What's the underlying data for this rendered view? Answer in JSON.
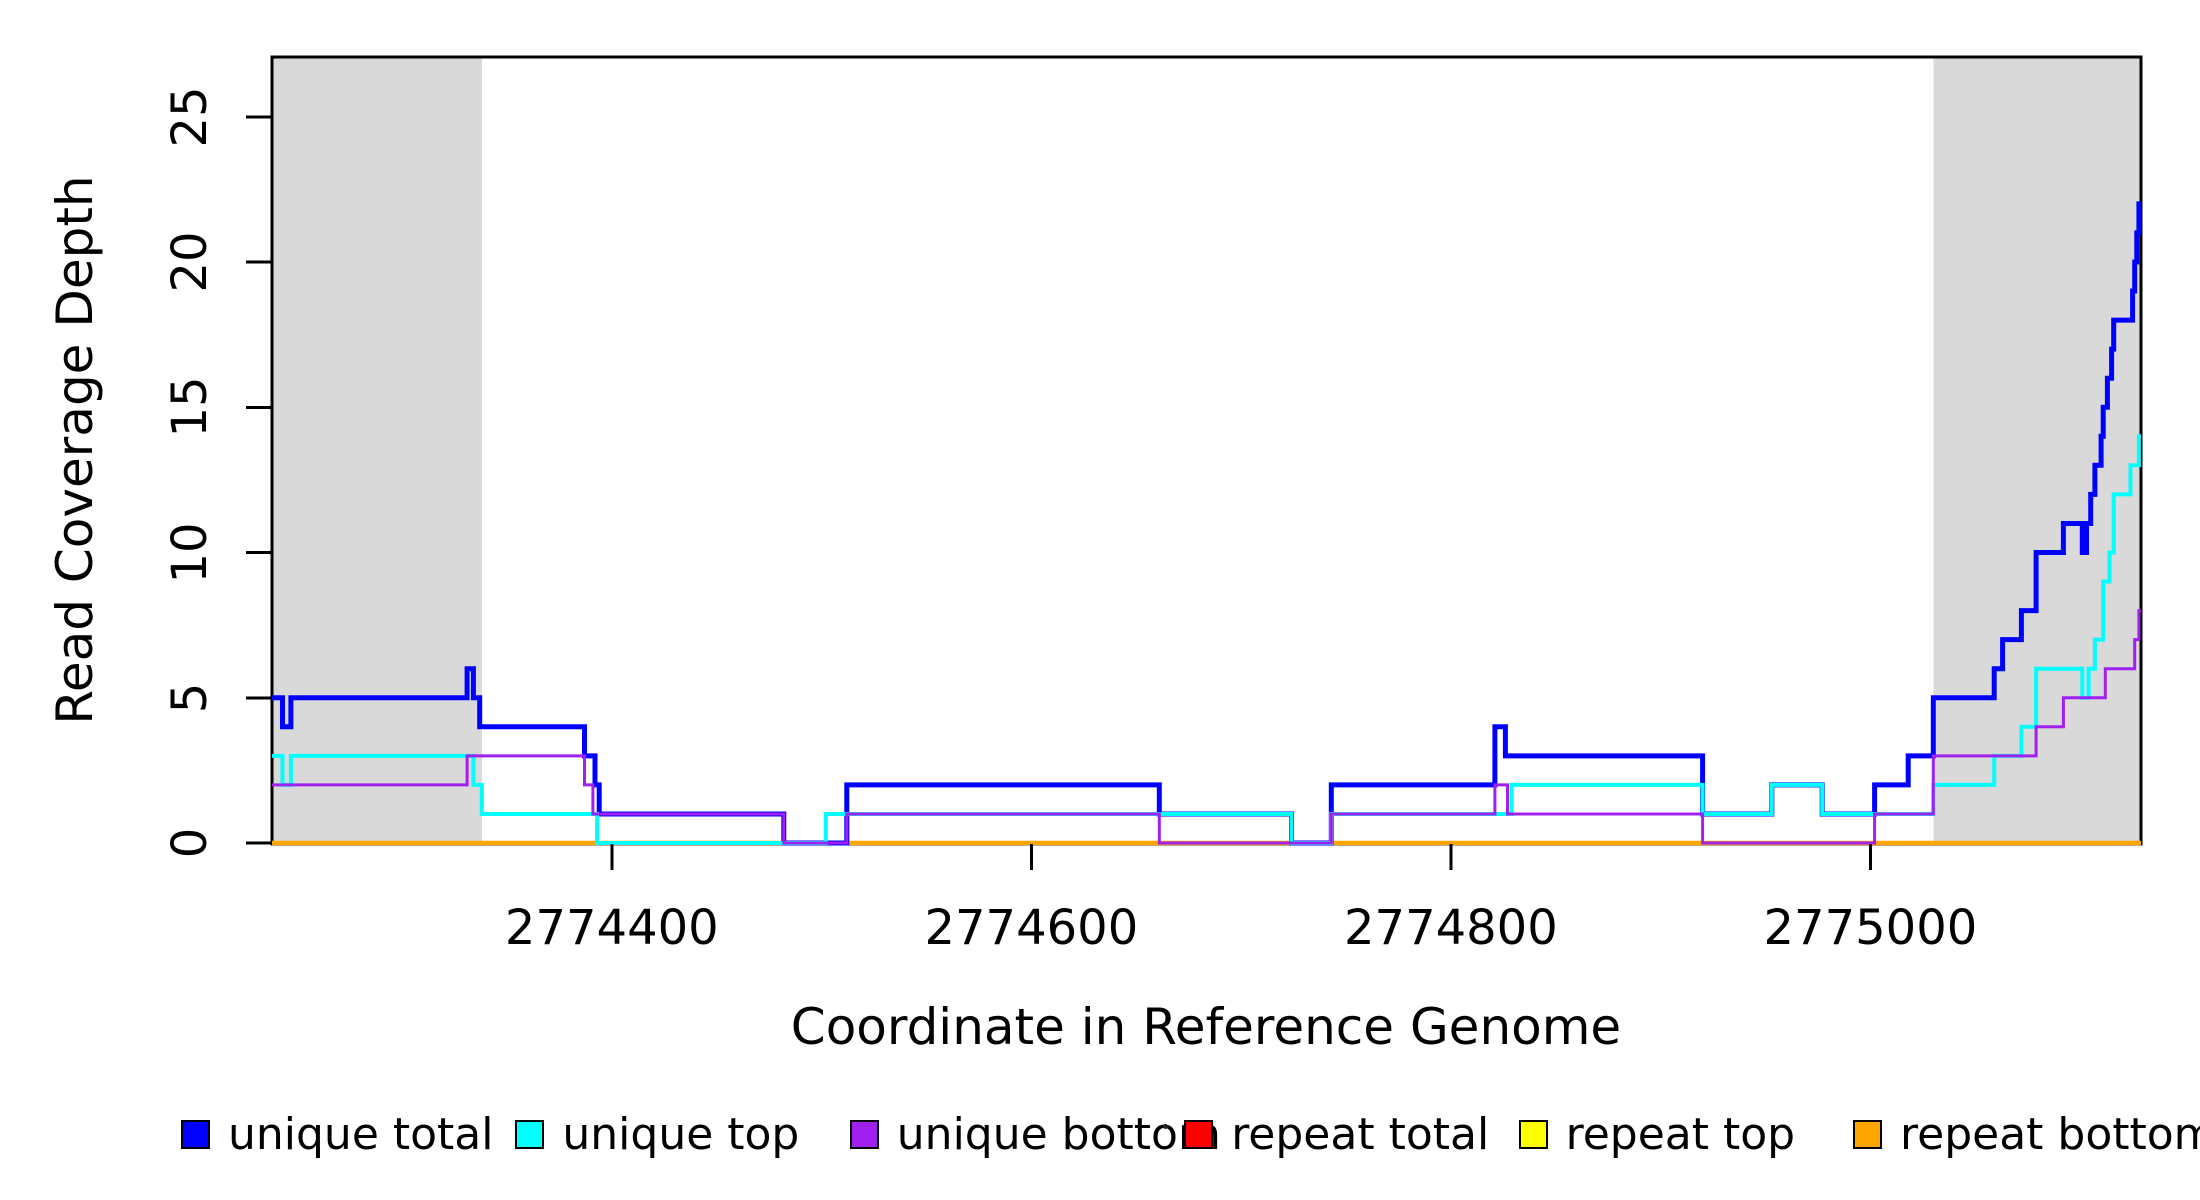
{
  "chart_data": {
    "type": "line",
    "subtype": "step",
    "title": "",
    "xlabel": "Coordinate in Reference Genome",
    "ylabel": "Read Coverage Depth",
    "xlim": [
      2774238,
      2775129
    ],
    "ylim": [
      0,
      27
    ],
    "grid": false,
    "legend_position": "bottom",
    "shade_color": "#d9d9d9",
    "axis_color": "#000000",
    "shaded_regions": [
      {
        "x0": 2774238,
        "x1": 2774338
      },
      {
        "x0": 2775030,
        "x1": 2775129
      }
    ],
    "x_ticks": [
      {
        "value": 2774400,
        "label": "2774400"
      },
      {
        "value": 2774600,
        "label": "2774600"
      },
      {
        "value": 2774800,
        "label": "2774800"
      },
      {
        "value": 2775000,
        "label": "2775000"
      }
    ],
    "y_ticks": [
      {
        "value": 0,
        "label": "0"
      },
      {
        "value": 5,
        "label": "5"
      },
      {
        "value": 10,
        "label": "10"
      },
      {
        "value": 15,
        "label": "15"
      },
      {
        "value": 20,
        "label": "20"
      },
      {
        "value": 25,
        "label": "25"
      }
    ],
    "series": [
      {
        "name": "repeat total",
        "color": "#ff0000",
        "width": 3,
        "steps": [
          [
            2774238,
            0
          ],
          [
            2775129,
            0
          ]
        ]
      },
      {
        "name": "repeat top",
        "color": "#ffff00",
        "width": 3,
        "steps": [
          [
            2774238,
            0
          ],
          [
            2775129,
            0
          ]
        ]
      },
      {
        "name": "repeat bottom",
        "color": "#ffa500",
        "width": 4.5,
        "steps": [
          [
            2774238,
            0
          ],
          [
            2775129,
            0
          ]
        ]
      },
      {
        "name": "unique total",
        "color": "#0000ff",
        "width": 5,
        "steps": [
          [
            2774238,
            5
          ],
          [
            2774243,
            4
          ],
          [
            2774247,
            5
          ],
          [
            2774331,
            6
          ],
          [
            2774334,
            5
          ],
          [
            2774337,
            4
          ],
          [
            2774387,
            3
          ],
          [
            2774392,
            2
          ],
          [
            2774394,
            1
          ],
          [
            2774482,
            0
          ],
          [
            2774512,
            2
          ],
          [
            2774661,
            1
          ],
          [
            2774724,
            0
          ],
          [
            2774743,
            2
          ],
          [
            2774821,
            4
          ],
          [
            2774826,
            3
          ],
          [
            2774920,
            1
          ],
          [
            2774953,
            2
          ],
          [
            2774977,
            1
          ],
          [
            2775002,
            2
          ],
          [
            2775018,
            3
          ],
          [
            2775030,
            5
          ],
          [
            2775059,
            6
          ],
          [
            2775063,
            7
          ],
          [
            2775072,
            8
          ],
          [
            2775079,
            10
          ],
          [
            2775092,
            11
          ],
          [
            2775101,
            10
          ],
          [
            2775103,
            11
          ],
          [
            2775105,
            12
          ],
          [
            2775107,
            13
          ],
          [
            2775110,
            14
          ],
          [
            2775111,
            15
          ],
          [
            2775113,
            16
          ],
          [
            2775115,
            17
          ],
          [
            2775116,
            18
          ],
          [
            2775125,
            19
          ],
          [
            2775126,
            20
          ],
          [
            2775127,
            21
          ],
          [
            2775128,
            22
          ],
          [
            2775129,
            22
          ]
        ]
      },
      {
        "name": "unique top",
        "color": "#00ffff",
        "width": 4,
        "steps": [
          [
            2774238,
            3
          ],
          [
            2774243,
            2
          ],
          [
            2774247,
            3
          ],
          [
            2774334,
            2
          ],
          [
            2774338,
            1
          ],
          [
            2774393,
            0
          ],
          [
            2774502,
            1
          ],
          [
            2774724,
            0
          ],
          [
            2774743,
            1
          ],
          [
            2774829,
            2
          ],
          [
            2774920,
            1
          ],
          [
            2774953,
            2
          ],
          [
            2774977,
            1
          ],
          [
            2775030,
            2
          ],
          [
            2775059,
            3
          ],
          [
            2775072,
            4
          ],
          [
            2775079,
            6
          ],
          [
            2775101,
            5
          ],
          [
            2775104,
            6
          ],
          [
            2775107,
            7
          ],
          [
            2775111,
            9
          ],
          [
            2775114,
            10
          ],
          [
            2775116,
            12
          ],
          [
            2775124,
            13
          ],
          [
            2775128,
            14
          ],
          [
            2775129,
            14
          ]
        ]
      },
      {
        "name": "unique bottom",
        "color": "#a020f0",
        "width": 3,
        "steps": [
          [
            2774238,
            2
          ],
          [
            2774331,
            3
          ],
          [
            2774387,
            2
          ],
          [
            2774391,
            1
          ],
          [
            2774482,
            0
          ],
          [
            2774512,
            1
          ],
          [
            2774661,
            0
          ],
          [
            2774743,
            1
          ],
          [
            2774821,
            2
          ],
          [
            2774827,
            1
          ],
          [
            2774920,
            0
          ],
          [
            2775002,
            1
          ],
          [
            2775030,
            3
          ],
          [
            2775079,
            4
          ],
          [
            2775092,
            5
          ],
          [
            2775112,
            6
          ],
          [
            2775126,
            7
          ],
          [
            2775128,
            8
          ],
          [
            2775129,
            8
          ]
        ]
      }
    ],
    "legend": [
      {
        "label": "unique total",
        "color": "#0000ff"
      },
      {
        "label": "unique top",
        "color": "#00ffff"
      },
      {
        "label": "unique bottom",
        "color": "#a020f0"
      },
      {
        "label": "repeat total",
        "color": "#ff0000"
      },
      {
        "label": "repeat top",
        "color": "#ffff00"
      },
      {
        "label": "repeat bottom",
        "color": "#ffa500"
      }
    ]
  }
}
